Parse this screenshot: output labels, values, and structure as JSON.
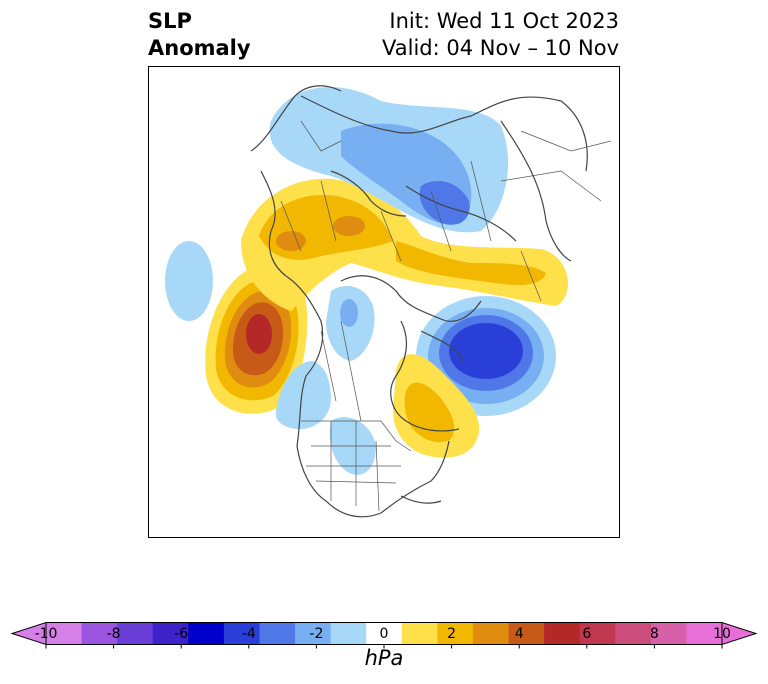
{
  "title": {
    "left_line1": "SLP",
    "left_line2": "Anomaly",
    "right_line1": "Init: Wed 11 Oct 2023",
    "right_line2": "Valid: 04 Nov – 10 Nov"
  },
  "colorbar": {
    "unit": "hPa",
    "tick_labels": [
      "-10",
      "-8",
      "-6",
      "-4",
      "-2",
      "0",
      "2",
      "4",
      "6",
      "8",
      "10"
    ],
    "levels": [
      -10,
      -9,
      -8,
      -7,
      -6,
      -5,
      -4,
      -3,
      -2,
      -1,
      1,
      2,
      3,
      4,
      5,
      6,
      7,
      8,
      9,
      10
    ],
    "colors": [
      "#d580e8",
      "#9b55e0",
      "#6a3fd8",
      "#3c22c8",
      "#0000cc",
      "#2a3fd8",
      "#4f77e8",
      "#78aef2",
      "#a8d8f8",
      "#ffffff",
      "#fde04a",
      "#f2b800",
      "#e08c10",
      "#c85a18",
      "#b42828",
      "#c03850",
      "#cc4c7c",
      "#d860a8",
      "#e670d8"
    ],
    "extend": "both"
  },
  "map": {
    "projection": "north-polar-stereographic",
    "anomalies": [
      {
        "region": "northeast-pacific",
        "sign": "positive",
        "peak_hpa": 7
      },
      {
        "region": "siberia-eurasia",
        "sign": "positive",
        "peak_hpa": 3
      },
      {
        "region": "eastern-canada",
        "sign": "positive",
        "peak_hpa": 2
      },
      {
        "region": "north-atlantic",
        "sign": "negative",
        "peak_hpa": -6
      },
      {
        "region": "western-russia",
        "sign": "negative",
        "peak_hpa": -4
      },
      {
        "region": "western-north-america",
        "sign": "negative",
        "peak_hpa": -2
      },
      {
        "region": "central-pacific",
        "sign": "negative",
        "peak_hpa": -1
      }
    ]
  }
}
